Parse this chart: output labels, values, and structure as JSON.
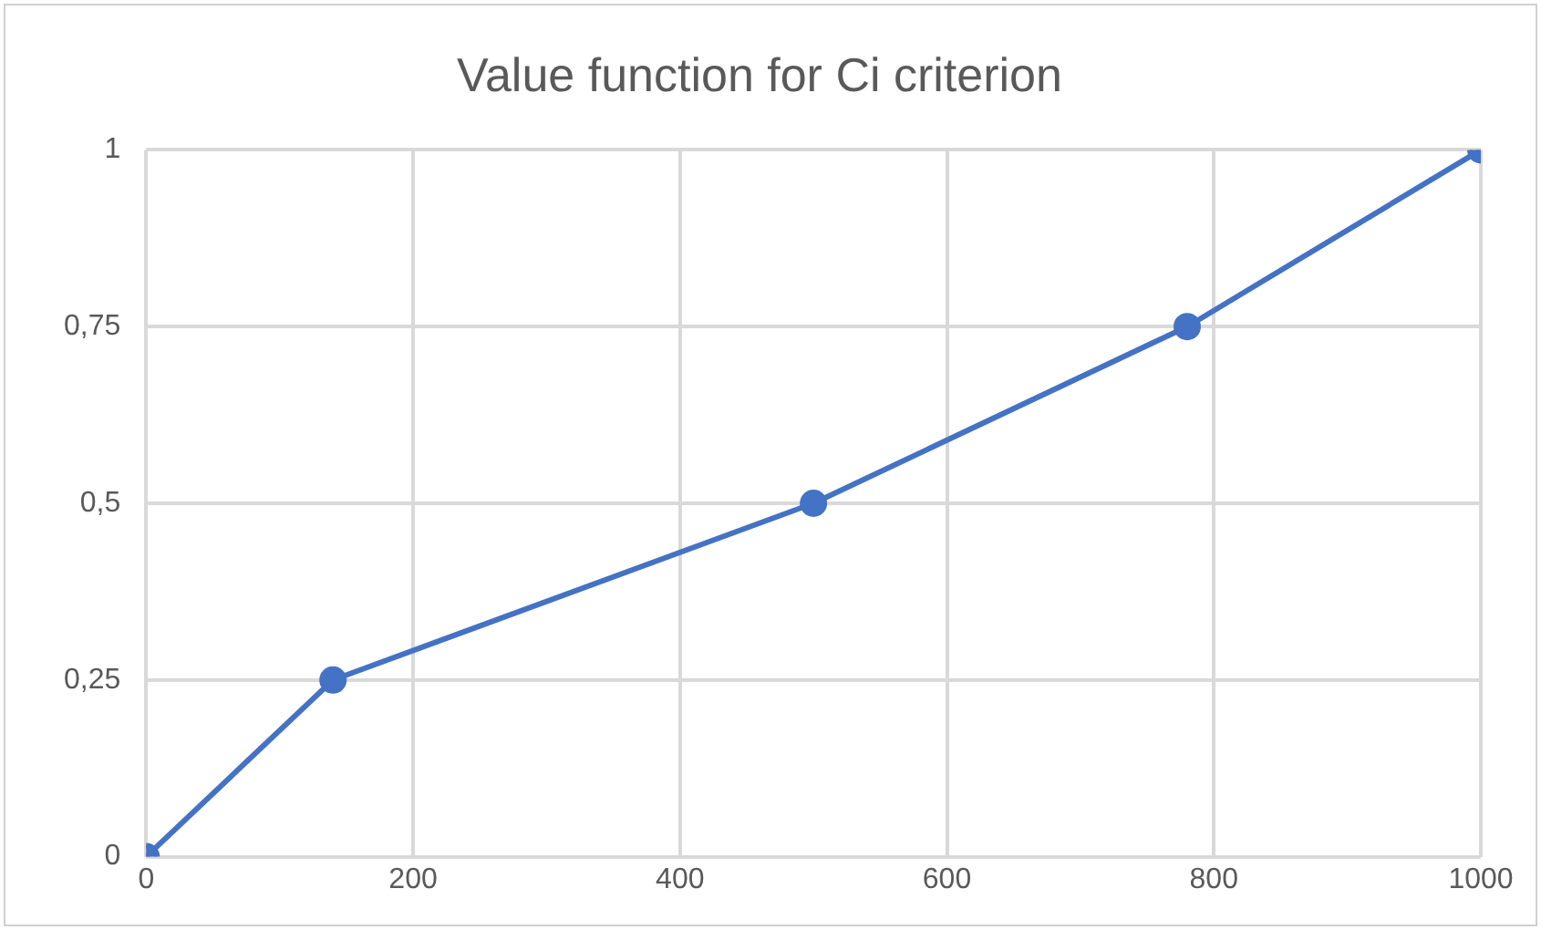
{
  "chart_data": {
    "type": "line",
    "title": "Value function for Ci criterion",
    "x": [
      0,
      140,
      500,
      780,
      1000
    ],
    "series": [
      {
        "color": "#4472c4",
        "values": [
          0,
          0.25,
          0.5,
          0.75,
          1
        ]
      }
    ],
    "xlim": [
      0,
      1000
    ],
    "xticks": [
      0,
      200,
      400,
      600,
      800,
      1000
    ],
    "ylim": [
      0,
      1
    ],
    "yticks": [
      0,
      {
        "value": 0.25,
        "label": "0,25"
      },
      {
        "value": 0.5,
        "label": "0,5"
      },
      {
        "value": 0.75,
        "label": "0,75"
      },
      1
    ],
    "grid": true,
    "legend": false,
    "marker": "circle",
    "line_style": "solid"
  }
}
